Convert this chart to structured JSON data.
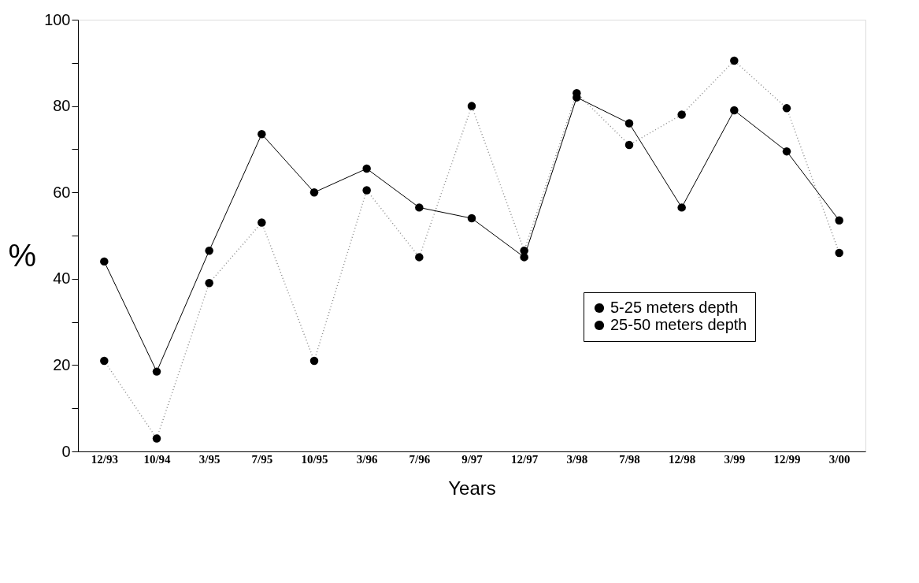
{
  "chart_data": {
    "type": "line",
    "xlabel": "Years",
    "ylabel": "%",
    "categories": [
      "12/93",
      "10/94",
      "3/95",
      "7/95",
      "10/95",
      "3/96",
      "7/96",
      "9/97",
      "12/97",
      "3/98",
      "7/98",
      "12/98",
      "3/99",
      "12/99",
      "3/00"
    ],
    "series": [
      {
        "name": "5-25 meters depth",
        "color": "#000000",
        "line_style": "dotted",
        "values": [
          21,
          3,
          39,
          53,
          21,
          60.5,
          45,
          80,
          46.5,
          83,
          71,
          78,
          90.5,
          79.5,
          46
        ]
      },
      {
        "name": "25-50 meters depth",
        "color": "#000000",
        "line_style": "solid",
        "values": [
          44,
          18.5,
          46.5,
          73.5,
          60,
          65.5,
          56.5,
          54,
          45,
          82,
          76,
          56.5,
          79,
          69.5,
          53.5
        ]
      }
    ],
    "ylim": [
      0,
      100
    ],
    "yticks": [
      0,
      {
        "value": 10,
        "label": null
      },
      20,
      {
        "value": 30,
        "label": null
      },
      40,
      {
        "value": 50,
        "label": null
      },
      60,
      {
        "value": 70,
        "label": null
      },
      80,
      {
        "value": 90,
        "label": null
      },
      100
    ],
    "marker": "circle",
    "grid": false,
    "legend": "bottom right"
  }
}
